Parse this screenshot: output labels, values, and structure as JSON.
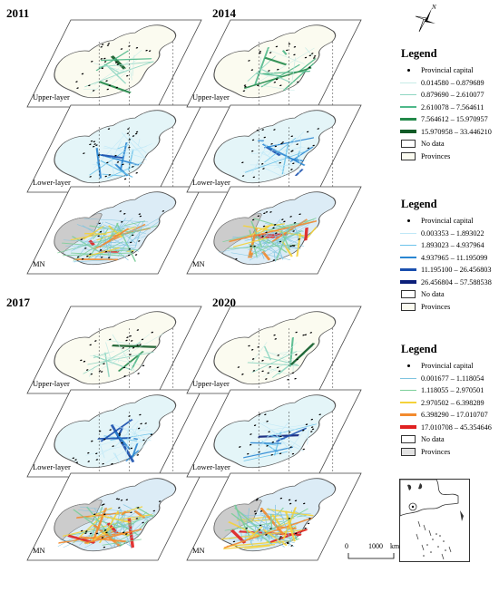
{
  "panels": [
    {
      "year": "2011",
      "layers": [
        "Upper-layer",
        "Lower-layer",
        "MN"
      ]
    },
    {
      "year": "2014",
      "layers": [
        "Upper-layer",
        "Lower-layer",
        "MN"
      ]
    },
    {
      "year": "2017",
      "layers": [
        "Upper-layer",
        "Lower-layer",
        "MN"
      ]
    },
    {
      "year": "2020",
      "layers": [
        "Upper-layer",
        "Lower-layer",
        "MN"
      ]
    }
  ],
  "north_arrow": {
    "label": "N"
  },
  "legends": [
    {
      "title": "Legend",
      "capital_label": "Provincial capital",
      "classes": [
        {
          "label": "0.014580 – 0.879689",
          "color": "#c6ece6"
        },
        {
          "label": "0.879690 – 2.610077",
          "color": "#8fd6c2"
        },
        {
          "label": "2.610078 – 7.564611",
          "color": "#4fb889"
        },
        {
          "label": "7.564612 – 15.970957",
          "color": "#23894a"
        },
        {
          "label": "15.970958 – 33.446210",
          "color": "#0f5a26"
        }
      ],
      "no_data_label": "No data",
      "provinces_label": "Provinces",
      "provinces_color": "#fbfbf0"
    },
    {
      "title": "Legend",
      "capital_label": "Provincial capital",
      "classes": [
        {
          "label": "0.003353 – 1.893022",
          "color": "#bfe8f7"
        },
        {
          "label": "1.893023 – 4.937964",
          "color": "#6cc3ea"
        },
        {
          "label": "4.937965 – 11.195099",
          "color": "#2a86d2"
        },
        {
          "label": "11.195100 – 26.456803",
          "color": "#1a4fae"
        },
        {
          "label": "26.456804 – 57.588538",
          "color": "#0b1f7a"
        }
      ],
      "no_data_label": "No data",
      "provinces_label": "Provinces",
      "provinces_color": "#fbfbf0"
    },
    {
      "title": "Legend",
      "capital_label": "Provincial capital",
      "classes": [
        {
          "label": "0.001677 – 1.118054",
          "color": "#7fc4e0"
        },
        {
          "label": "1.118055 – 2.970501",
          "color": "#7ccf9a"
        },
        {
          "label": "2.970502 – 6.398289",
          "color": "#f4d23a"
        },
        {
          "label": "6.398290 – 17.010707",
          "color": "#f28a2e"
        },
        {
          "label": "17.010708 – 45.354646",
          "color": "#e02020"
        }
      ],
      "no_data_label": "No data",
      "provinces_label": "Provinces",
      "provinces_color": "#e2e2e2"
    }
  ],
  "scale_bar": {
    "zero": "0",
    "distance": "1000",
    "unit": "km"
  },
  "colors": {
    "upper_fill": "#fbfbf0",
    "lower_fill": "#e4f5f8",
    "mn_fill": "#dcecf6",
    "no_data_fill": "#cccccc",
    "outline": "#444444"
  }
}
